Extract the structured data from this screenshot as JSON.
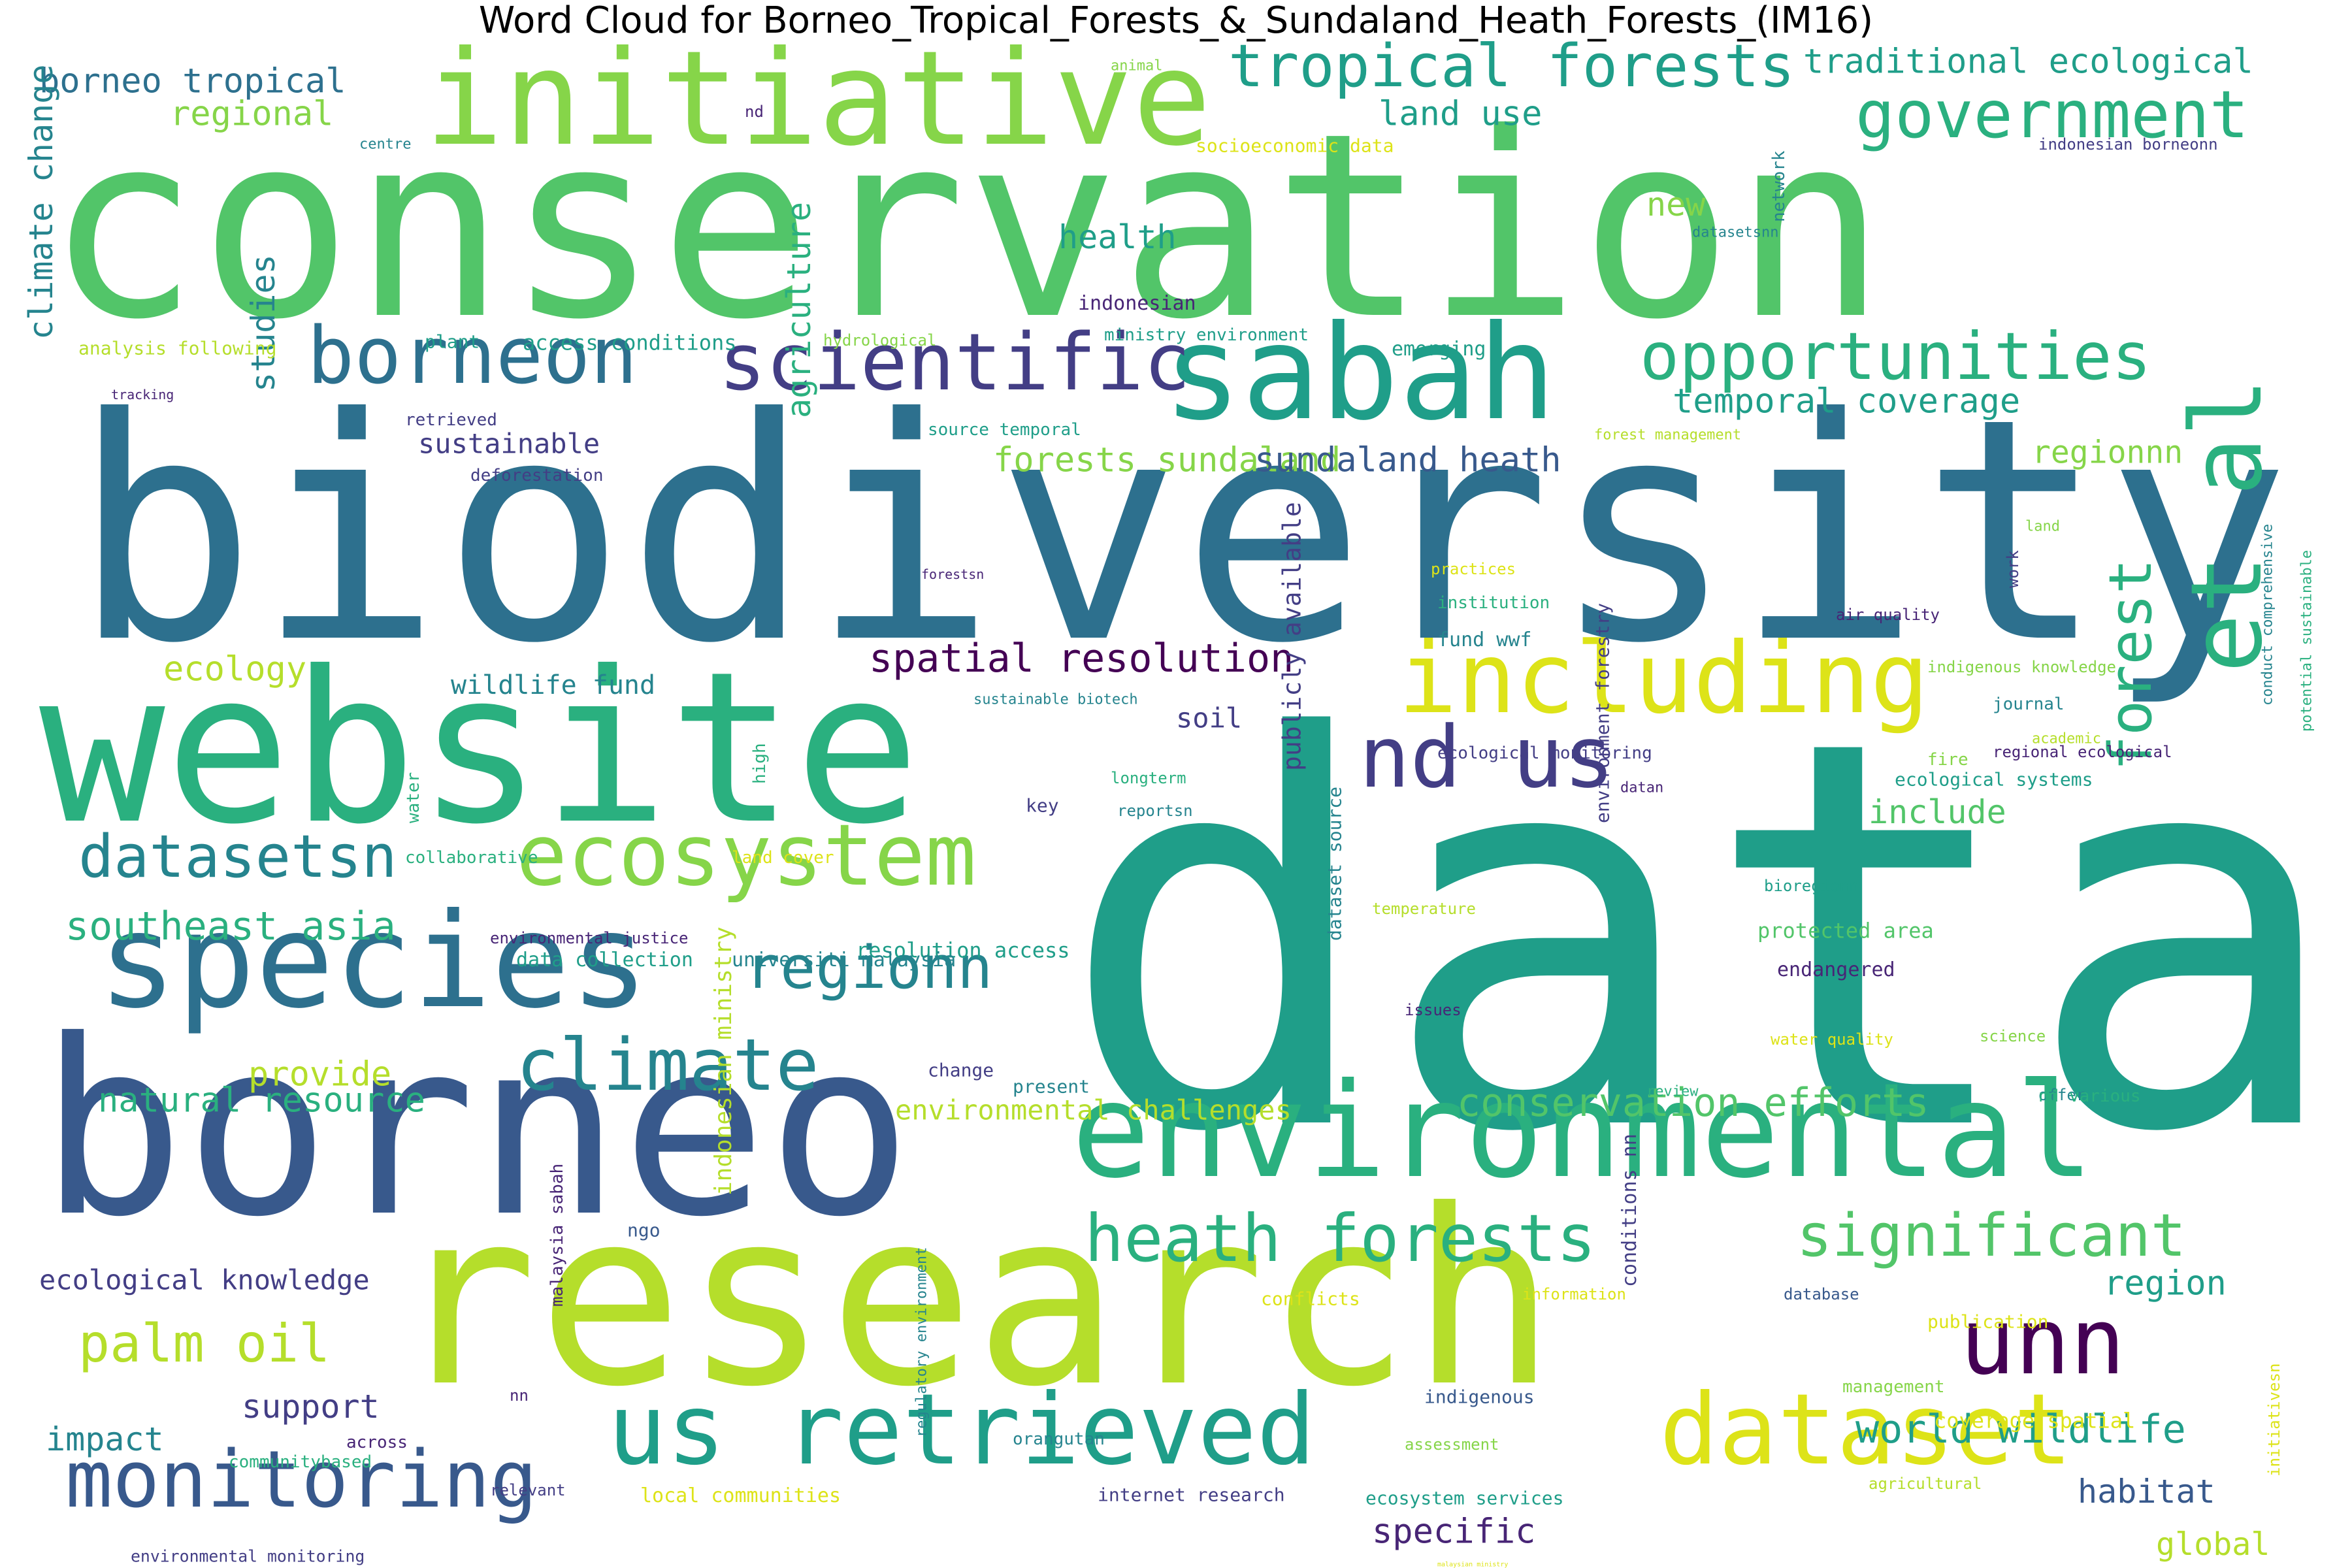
{
  "title": "Word Cloud for Borneo_Tropical_Forests_&_Sundaland_Heath_Forests_(IM16)",
  "colors": {
    "yellow": "#dde318",
    "lime": "#b5de2b",
    "lightgreen": "#86d549",
    "green": "#52c569",
    "seagreen": "#2ab07f",
    "teal": "#1f9e89",
    "tealblue": "#25848e",
    "blue": "#2d708e",
    "steel": "#38598c",
    "indigo": "#433e85",
    "purple": "#482576",
    "dark": "#440154"
  },
  "words": [
    {
      "text": "conservation",
      "color": "green"
    },
    {
      "text": "biodiversity",
      "color": "blue"
    },
    {
      "text": "data",
      "color": "teal"
    },
    {
      "text": "website",
      "color": "seagreen"
    },
    {
      "text": "borneo",
      "color": "steel"
    },
    {
      "text": "research",
      "color": "lime"
    },
    {
      "text": "initiative",
      "color": "lightgreen"
    },
    {
      "text": "environmental",
      "color": "seagreen"
    },
    {
      "text": "sabah",
      "color": "teal"
    },
    {
      "text": "species",
      "color": "blue"
    },
    {
      "text": "including",
      "color": "yellow"
    },
    {
      "text": "borneon",
      "color": "blue"
    },
    {
      "text": "scientific",
      "color": "indigo"
    },
    {
      "text": "opportunities",
      "color": "seagreen"
    },
    {
      "text": "government",
      "color": "seagreen"
    },
    {
      "text": "tropical forests",
      "color": "teal"
    },
    {
      "text": "ecosystem",
      "color": "lightgreen"
    },
    {
      "text": "et al",
      "color": "seagreen"
    },
    {
      "text": "us retrieved",
      "color": "teal"
    },
    {
      "text": "dataset",
      "color": "yellow"
    },
    {
      "text": "nd us",
      "color": "indigo"
    },
    {
      "text": "unn",
      "color": "dark"
    },
    {
      "text": "climate",
      "color": "tealblue"
    },
    {
      "text": "monitoring",
      "color": "steel"
    },
    {
      "text": "heath forests",
      "color": "seagreen"
    },
    {
      "text": "significant",
      "color": "green"
    },
    {
      "text": "regionn",
      "color": "tealblue"
    },
    {
      "text": "datasetsn",
      "color": "tealblue"
    },
    {
      "text": "forest",
      "color": "seagreen"
    },
    {
      "text": "palm oil",
      "color": "lime"
    },
    {
      "text": "world wildlife",
      "color": "teal"
    },
    {
      "text": "conservation efforts",
      "color": "green"
    },
    {
      "text": "spatial resolution",
      "color": "dark"
    },
    {
      "text": "southeast asia",
      "color": "seagreen"
    },
    {
      "text": "temporal coverage",
      "color": "teal"
    },
    {
      "text": "traditional ecological",
      "color": "teal"
    },
    {
      "text": "forests sundaland",
      "color": "lightgreen"
    },
    {
      "text": "sundaland heath",
      "color": "steel"
    },
    {
      "text": "land use",
      "color": "teal"
    },
    {
      "text": "regional",
      "color": "lightgreen"
    },
    {
      "text": "borneo tropical",
      "color": "blue"
    },
    {
      "text": "natural resource",
      "color": "seagreen"
    },
    {
      "text": "region",
      "color": "teal"
    },
    {
      "text": "ecological knowledge",
      "color": "indigo"
    },
    {
      "text": "climate change",
      "color": "tealblue"
    },
    {
      "text": "agriculture",
      "color": "seagreen"
    },
    {
      "text": "studies",
      "color": "tealblue"
    },
    {
      "text": "health",
      "color": "teal"
    },
    {
      "text": "new",
      "color": "lightgreen"
    },
    {
      "text": "sustainable",
      "color": "indigo"
    },
    {
      "text": "ecology",
      "color": "lime"
    },
    {
      "text": "wildlife fund",
      "color": "tealblue"
    },
    {
      "text": "soil",
      "color": "indigo"
    },
    {
      "text": "provide",
      "color": "lime"
    },
    {
      "text": "environmental challenges",
      "color": "lime"
    },
    {
      "text": "include",
      "color": "green"
    },
    {
      "text": "support",
      "color": "indigo"
    },
    {
      "text": "impact",
      "color": "tealblue"
    },
    {
      "text": "specific",
      "color": "purple"
    },
    {
      "text": "habitat",
      "color": "steel"
    },
    {
      "text": "global",
      "color": "lime"
    },
    {
      "text": "regionnn",
      "color": "lightgreen"
    },
    {
      "text": "publicly available",
      "color": "indigo"
    },
    {
      "text": "indonesian ministry",
      "color": "lime"
    },
    {
      "text": "environment forestry",
      "color": "indigo"
    },
    {
      "text": "conditions nn",
      "color": "indigo"
    },
    {
      "text": "access conditions",
      "color": "teal"
    },
    {
      "text": "indonesian",
      "color": "purple"
    },
    {
      "text": "ministry environment",
      "color": "teal"
    },
    {
      "text": "emerging",
      "color": "teal"
    },
    {
      "text": "plant",
      "color": "teal"
    },
    {
      "text": "hydrological",
      "color": "lightgreen"
    },
    {
      "text": "analysis following",
      "color": "lime"
    },
    {
      "text": "tracking",
      "color": "purple"
    },
    {
      "text": "retrieved",
      "color": "indigo"
    },
    {
      "text": "source temporal",
      "color": "teal"
    },
    {
      "text": "forest management",
      "color": "lime"
    },
    {
      "text": "deforestation",
      "color": "indigo"
    },
    {
      "text": "forestsn",
      "color": "purple"
    },
    {
      "text": "practices",
      "color": "yellow"
    },
    {
      "text": "institution",
      "color": "seagreen"
    },
    {
      "text": "fund wwf",
      "color": "tealblue"
    },
    {
      "text": "air quality",
      "color": "purple"
    },
    {
      "text": "indigenous knowledge",
      "color": "lightgreen"
    },
    {
      "text": "journal",
      "color": "tealblue"
    },
    {
      "text": "academic",
      "color": "lime"
    },
    {
      "text": "regional ecological",
      "color": "purple"
    },
    {
      "text": "ecological monitoring",
      "color": "indigo"
    },
    {
      "text": "fire",
      "color": "lightgreen"
    },
    {
      "text": "ecological systems",
      "color": "teal"
    },
    {
      "text": "sustainable biotech",
      "color": "tealblue"
    },
    {
      "text": "water",
      "color": "seagreen"
    },
    {
      "text": "high",
      "color": "seagreen"
    },
    {
      "text": "longterm",
      "color": "seagreen"
    },
    {
      "text": "key",
      "color": "indigo"
    },
    {
      "text": "reportsn",
      "color": "tealblue"
    },
    {
      "text": "datan",
      "color": "purple"
    },
    {
      "text": "collaborative",
      "color": "seagreen"
    },
    {
      "text": "land cover",
      "color": "yellow"
    },
    {
      "text": "dataset source",
      "color": "tealblue"
    },
    {
      "text": "bioregionn",
      "color": "teal"
    },
    {
      "text": "protected area",
      "color": "green"
    },
    {
      "text": "endangered",
      "color": "purple"
    },
    {
      "text": "temperature",
      "color": "lime"
    },
    {
      "text": "environmental justice",
      "color": "purple"
    },
    {
      "text": "resolution access",
      "color": "teal"
    },
    {
      "text": "data collection",
      "color": "teal"
    },
    {
      "text": "universiti malaysia",
      "color": "tealblue"
    },
    {
      "text": "issues",
      "color": "purple"
    },
    {
      "text": "water quality",
      "color": "yellow"
    },
    {
      "text": "science",
      "color": "lightgreen"
    },
    {
      "text": "change",
      "color": "indigo"
    },
    {
      "text": "present",
      "color": "tealblue"
    },
    {
      "text": "review",
      "color": "seagreen"
    },
    {
      "text": "offer",
      "color": "tealblue"
    },
    {
      "text": "nd various",
      "color": "seagreen"
    },
    {
      "text": "malaysia sabah",
      "color": "purple"
    },
    {
      "text": "ngo",
      "color": "steel"
    },
    {
      "text": "regulatory environment",
      "color": "tealblue"
    },
    {
      "text": "conflicts",
      "color": "yellow"
    },
    {
      "text": "information",
      "color": "yellow"
    },
    {
      "text": "database",
      "color": "steel"
    },
    {
      "text": "publication",
      "color": "yellow"
    },
    {
      "text": "nn",
      "color": "purple"
    },
    {
      "text": "indigenous",
      "color": "steel"
    },
    {
      "text": "orangutan",
      "color": "tealblue"
    },
    {
      "text": "management",
      "color": "lightgreen"
    },
    {
      "text": "coverage spatial",
      "color": "yellow"
    },
    {
      "text": "initiativesn",
      "color": "yellow"
    },
    {
      "text": "across",
      "color": "purple"
    },
    {
      "text": "communitybased",
      "color": "seagreen"
    },
    {
      "text": "assessment",
      "color": "lightgreen"
    },
    {
      "text": "relevant",
      "color": "indigo"
    },
    {
      "text": "local communities",
      "color": "yellow"
    },
    {
      "text": "internet research",
      "color": "indigo"
    },
    {
      "text": "ecosystem services",
      "color": "teal"
    },
    {
      "text": "agricultural",
      "color": "lime"
    },
    {
      "text": "environmental monitoring",
      "color": "indigo"
    },
    {
      "text": "malaysian ministry",
      "color": "yellow"
    },
    {
      "text": "network",
      "color": "tealblue"
    },
    {
      "text": "datasetsnn",
      "color": "tealblue"
    },
    {
      "text": "indonesian borneonn",
      "color": "indigo"
    },
    {
      "text": "socioeconomic data",
      "color": "yellow"
    },
    {
      "text": "animal",
      "color": "lightgreen"
    },
    {
      "text": "nd",
      "color": "purple"
    },
    {
      "text": "centre",
      "color": "tealblue"
    },
    {
      "text": "potential sustainable",
      "color": "seagreen"
    },
    {
      "text": "conduct comprehensive",
      "color": "tealblue"
    },
    {
      "text": "land",
      "color": "lightgreen"
    },
    {
      "text": "work",
      "color": "indigo"
    }
  ]
}
